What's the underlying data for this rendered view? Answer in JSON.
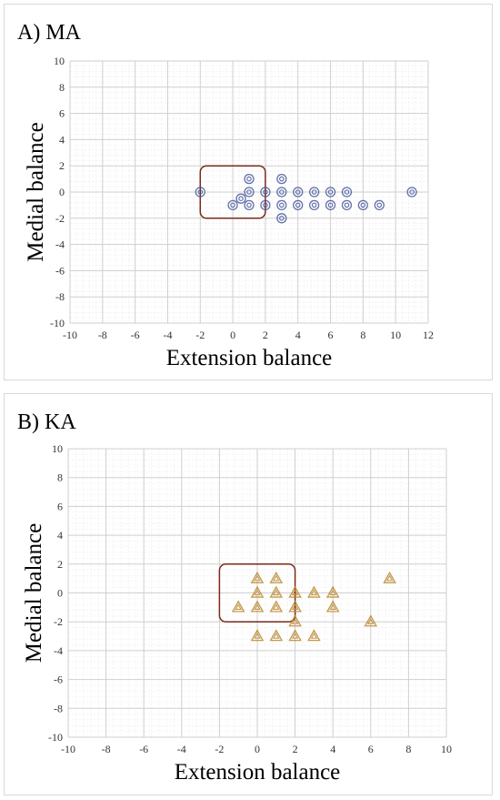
{
  "chart_data": [
    {
      "type": "scatter",
      "title": "A) MA",
      "xlabel": "Extension balance",
      "ylabel": "Medial balance",
      "xlim": [
        -10,
        12
      ],
      "ylim": [
        -10,
        10
      ],
      "xticks": [
        "-10",
        "-8",
        "-6",
        "-4",
        "-2",
        "0",
        "2",
        "4",
        "6",
        "8",
        "10",
        "12"
      ],
      "yticks": [
        "-10",
        "-8",
        "-6",
        "-4",
        "-2",
        "0",
        "2",
        "4",
        "6",
        "8",
        "10"
      ],
      "marker": "double-circle",
      "marker_color": "#3b4e96",
      "box": {
        "x": [
          -2,
          2
        ],
        "y": [
          -2,
          2
        ],
        "color": "#7a2a1a"
      },
      "points": [
        {
          "x": -2,
          "y": 0
        },
        {
          "x": 0.5,
          "y": -0.5
        },
        {
          "x": 0,
          "y": -1
        },
        {
          "x": 1,
          "y": 1
        },
        {
          "x": 1,
          "y": 0
        },
        {
          "x": 1,
          "y": -1
        },
        {
          "x": 2,
          "y": 0
        },
        {
          "x": 2,
          "y": -1
        },
        {
          "x": 3,
          "y": 1
        },
        {
          "x": 3,
          "y": 0
        },
        {
          "x": 3,
          "y": -1
        },
        {
          "x": 3,
          "y": -2
        },
        {
          "x": 4,
          "y": 0
        },
        {
          "x": 4,
          "y": -1
        },
        {
          "x": 5,
          "y": 0
        },
        {
          "x": 5,
          "y": -1
        },
        {
          "x": 6,
          "y": 0
        },
        {
          "x": 6,
          "y": -1
        },
        {
          "x": 7,
          "y": 0
        },
        {
          "x": 7,
          "y": -1
        },
        {
          "x": 8,
          "y": -1
        },
        {
          "x": 9,
          "y": -1
        },
        {
          "x": 11,
          "y": 0
        }
      ]
    },
    {
      "type": "scatter",
      "title": "B) KA",
      "xlabel": "Extension balance",
      "ylabel": "Medial balance",
      "xlim": [
        -10,
        10
      ],
      "ylim": [
        -10,
        10
      ],
      "xticks": [
        "-10",
        "-8",
        "-6",
        "-4",
        "-2",
        "0",
        "2",
        "4",
        "6",
        "8",
        "10"
      ],
      "yticks": [
        "-10",
        "-8",
        "-6",
        "-4",
        "-2",
        "0",
        "2",
        "4",
        "6",
        "8",
        "10"
      ],
      "marker": "double-triangle",
      "marker_color": "#b8862c",
      "box": {
        "x": [
          -2,
          2
        ],
        "y": [
          -2,
          2
        ],
        "color": "#7a2a1a"
      },
      "points": [
        {
          "x": -1,
          "y": -1
        },
        {
          "x": 0,
          "y": 1
        },
        {
          "x": 0,
          "y": 0
        },
        {
          "x": 0,
          "y": -1
        },
        {
          "x": 0,
          "y": -3
        },
        {
          "x": 1,
          "y": 1
        },
        {
          "x": 1,
          "y": 0
        },
        {
          "x": 1,
          "y": -1
        },
        {
          "x": 1,
          "y": -3
        },
        {
          "x": 2,
          "y": 0
        },
        {
          "x": 2,
          "y": -1
        },
        {
          "x": 2,
          "y": -2
        },
        {
          "x": 2,
          "y": -3
        },
        {
          "x": 3,
          "y": 0
        },
        {
          "x": 3,
          "y": -3
        },
        {
          "x": 4,
          "y": 0
        },
        {
          "x": 4,
          "y": -1
        },
        {
          "x": 6,
          "y": -2
        },
        {
          "x": 7,
          "y": 1
        }
      ]
    }
  ]
}
